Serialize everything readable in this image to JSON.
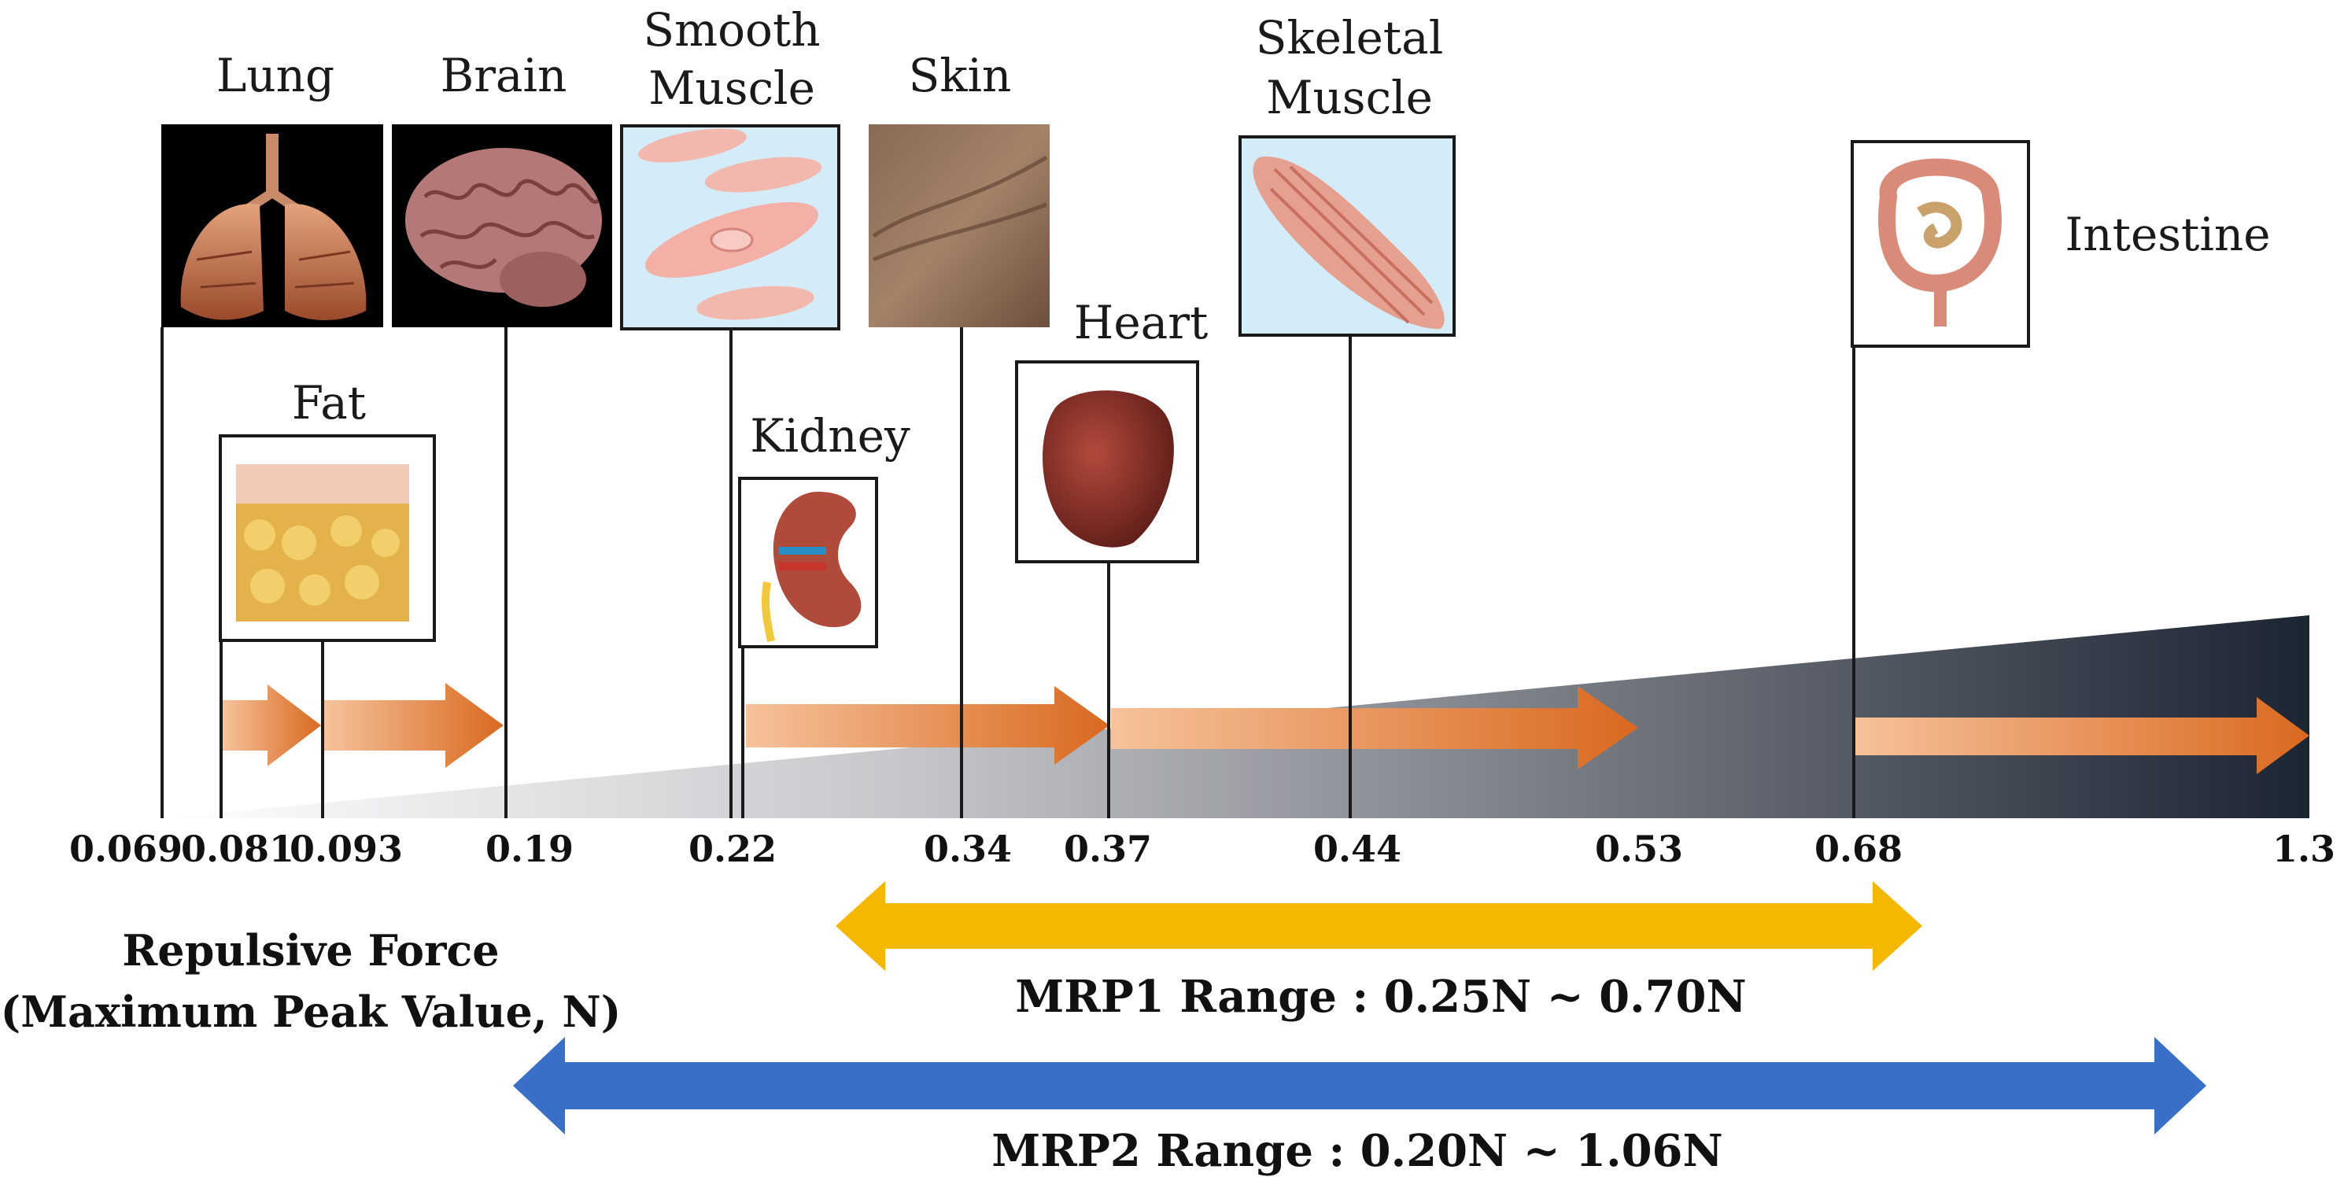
{
  "organs": {
    "lung": "Lung",
    "brain": "Brain",
    "smooth_muscle_1": "Smooth",
    "smooth_muscle_2": "Muscle",
    "skin": "Skin",
    "skeletal_muscle_1": "Skeletal",
    "skeletal_muscle_2": "Muscle",
    "intestine": "Intestine",
    "fat": "Fat",
    "kidney": "Kidney",
    "heart": "Heart"
  },
  "axis": {
    "ticks": [
      "0.069",
      "0.081",
      "0.093",
      "0.19",
      "0.22",
      "0.34",
      "0.37",
      "0.44",
      "0.53",
      "0.68",
      "1.3"
    ],
    "label_line1": "Repulsive Force",
    "label_line2": "(Maximum Peak Value, N)"
  },
  "ranges": {
    "mrp1": "MRP1 Range : 0.25N ~ 0.70N",
    "mrp2": "MRP2 Range : 0.20N ~ 1.06N"
  },
  "colors": {
    "orange_arrow": "#e07a2e",
    "mrp1_arrow": "#f5b800",
    "mrp2_arrow": "#3a6fc8",
    "wedge_dark": "#1c2533"
  }
}
